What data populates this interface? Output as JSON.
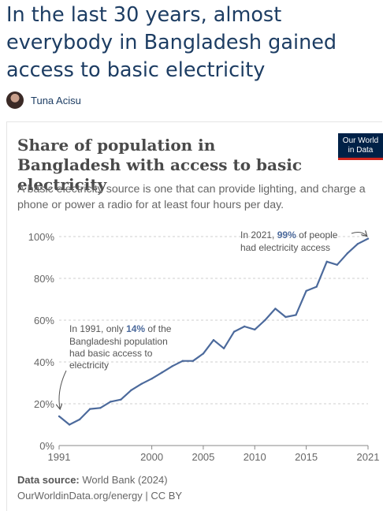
{
  "headline": "In the last 30 years, almost everybody in Bangladesh gained access to basic electricity",
  "author": "Tuna Acisu",
  "logo": {
    "line1": "Our World",
    "line2": "in Data"
  },
  "chart_data": {
    "type": "line",
    "title": "Share of population in Bangladesh with access to basic electricity",
    "subtitle": "A basic electricity source is one that can provide lighting, and charge a phone or power a radio for at least four hours per day.",
    "xlabel": "",
    "ylabel": "",
    "xlim": [
      1991,
      2021
    ],
    "ylim": [
      0,
      100
    ],
    "y_ticks": [
      "0%",
      "20%",
      "40%",
      "60%",
      "80%",
      "100%"
    ],
    "x_ticks": [
      "1991",
      "2000",
      "2005",
      "2010",
      "2015",
      "2021"
    ],
    "grid": true,
    "line_color": "#4c6a9c",
    "series": [
      {
        "x": [
          1991,
          1992,
          1993,
          1994,
          1995,
          1996,
          1997,
          1998,
          1999,
          2000,
          2001,
          2002,
          2003,
          2004,
          2005,
          2006,
          2007,
          2008,
          2009,
          2010,
          2011,
          2012,
          2013,
          2014,
          2015,
          2016,
          2017,
          2018,
          2019,
          2020,
          2021
        ],
        "values": [
          14,
          10,
          12.5,
          17.5,
          18,
          21,
          22,
          26.5,
          29.5,
          32,
          35,
          38,
          40.5,
          40.5,
          44,
          50.5,
          46.5,
          54.5,
          57,
          55.5,
          60,
          65.5,
          61.5,
          62.5,
          74,
          76,
          88,
          86.5,
          92,
          96.5,
          99
        ]
      }
    ],
    "annotations": [
      {
        "pre": "In 2021, ",
        "highlight": "99%",
        "post": " of people",
        "line2": "had electricity access"
      },
      {
        "pre": "In 1991, only ",
        "highlight": "14%",
        "post": " of the",
        "line2": "Bangladeshi population",
        "line3": "had basic access to",
        "line4": "electricity"
      }
    ]
  },
  "footer": {
    "source_label": "Data source:",
    "source_value": "World Bank (2024)",
    "url_line": "OurWorldinData.org/energy | CC BY"
  }
}
